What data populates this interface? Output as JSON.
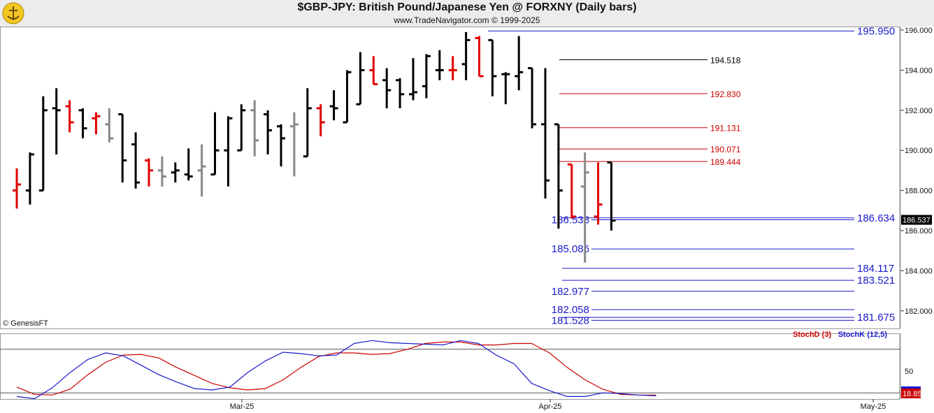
{
  "header": {
    "title": "$GBP-JPY:  British Pound/Japanese Yen @ FORXNY  (Daily bars)",
    "subtitle": "www.TradeNavigator.com © 1999-2025"
  },
  "copyright": "© GenesisFT",
  "colors": {
    "up": "#000000",
    "down": "#e00000",
    "neutral": "#888888",
    "blue": "#1a1acc",
    "red": "#cc0000"
  },
  "chart_data": [
    {
      "type": "ohlc",
      "ylim": [
        181.2,
        196.2
      ],
      "yticks": [
        "196.000",
        "194.000",
        "192.000",
        "190.000",
        "188.000",
        "186.000",
        "184.000",
        "182.000"
      ],
      "xticks": [
        "Mar-25",
        "Apr-25",
        "May-25"
      ],
      "last_price": "186.537",
      "bars": [
        {
          "o": 188.0,
          "h": 189.1,
          "l": 187.1,
          "c": 188.3,
          "col": "down"
        },
        {
          "o": 188.0,
          "h": 189.9,
          "l": 187.3,
          "c": 189.8,
          "col": "up"
        },
        {
          "o": 188.0,
          "h": 192.7,
          "l": 188.0,
          "c": 192.0,
          "col": "up"
        },
        {
          "o": 192.1,
          "h": 193.1,
          "l": 189.8,
          "c": 192.0,
          "col": "up"
        },
        {
          "o": 192.2,
          "h": 192.5,
          "l": 190.9,
          "c": 191.4,
          "col": "down"
        },
        {
          "o": 192.0,
          "h": 192.1,
          "l": 190.6,
          "c": 191.1,
          "col": "up"
        },
        {
          "o": 191.6,
          "h": 191.9,
          "l": 190.8,
          "c": 191.7,
          "col": "down"
        },
        {
          "o": 191.3,
          "h": 192.1,
          "l": 190.4,
          "c": 190.6,
          "col": "neutral"
        },
        {
          "o": 191.8,
          "h": 191.8,
          "l": 188.4,
          "c": 189.5,
          "col": "up"
        },
        {
          "o": 190.3,
          "h": 190.9,
          "l": 188.1,
          "c": 188.4,
          "col": "up"
        },
        {
          "o": 189.5,
          "h": 189.6,
          "l": 188.2,
          "c": 189.0,
          "col": "down"
        },
        {
          "o": 189.0,
          "h": 189.7,
          "l": 188.2,
          "c": 188.7,
          "col": "neutral"
        },
        {
          "o": 188.9,
          "h": 189.4,
          "l": 188.4,
          "c": 189.0,
          "col": "up"
        },
        {
          "o": 188.8,
          "h": 190.1,
          "l": 188.5,
          "c": 188.7,
          "col": "up"
        },
        {
          "o": 189.0,
          "h": 190.3,
          "l": 187.7,
          "c": 189.2,
          "col": "neutral"
        },
        {
          "o": 188.8,
          "h": 191.9,
          "l": 188.8,
          "c": 190.0,
          "col": "up"
        },
        {
          "o": 190.0,
          "h": 191.7,
          "l": 188.2,
          "c": 191.6,
          "col": "up"
        },
        {
          "o": 190.0,
          "h": 192.3,
          "l": 190.0,
          "c": 192.0,
          "col": "up"
        },
        {
          "o": 192.0,
          "h": 192.5,
          "l": 189.7,
          "c": 190.5,
          "col": "neutral"
        },
        {
          "o": 191.8,
          "h": 192.0,
          "l": 189.8,
          "c": 191.0,
          "col": "up"
        },
        {
          "o": 191.2,
          "h": 191.3,
          "l": 189.2,
          "c": 190.6,
          "col": "up"
        },
        {
          "o": 191.2,
          "h": 191.9,
          "l": 188.7,
          "c": 191.3,
          "col": "neutral"
        },
        {
          "o": 189.7,
          "h": 193.1,
          "l": 189.7,
          "c": 192.1,
          "col": "up"
        },
        {
          "o": 192.1,
          "h": 192.3,
          "l": 190.7,
          "c": 191.4,
          "col": "down"
        },
        {
          "o": 192.2,
          "h": 193.0,
          "l": 191.5,
          "c": 192.1,
          "col": "up"
        },
        {
          "o": 191.4,
          "h": 194.0,
          "l": 191.4,
          "c": 193.9,
          "col": "up"
        },
        {
          "o": 192.3,
          "h": 194.9,
          "l": 192.3,
          "c": 194.0,
          "col": "up"
        },
        {
          "o": 194.0,
          "h": 194.7,
          "l": 193.3,
          "c": 193.3,
          "col": "down"
        },
        {
          "o": 193.5,
          "h": 194.1,
          "l": 192.1,
          "c": 193.0,
          "col": "up"
        },
        {
          "o": 193.5,
          "h": 193.6,
          "l": 192.1,
          "c": 192.8,
          "col": "up"
        },
        {
          "o": 192.8,
          "h": 194.6,
          "l": 192.5,
          "c": 192.9,
          "col": "up"
        },
        {
          "o": 193.2,
          "h": 194.8,
          "l": 192.6,
          "c": 194.7,
          "col": "up"
        },
        {
          "o": 194.0,
          "h": 195.0,
          "l": 193.5,
          "c": 194.0,
          "col": "up"
        },
        {
          "o": 194.0,
          "h": 194.7,
          "l": 193.5,
          "c": 194.0,
          "col": "down"
        },
        {
          "o": 194.3,
          "h": 195.9,
          "l": 193.5,
          "c": 195.5,
          "col": "up"
        },
        {
          "o": 195.6,
          "h": 195.7,
          "l": 193.7,
          "c": 193.7,
          "col": "down"
        },
        {
          "o": 195.5,
          "h": 195.5,
          "l": 192.7,
          "c": 193.7,
          "col": "up"
        },
        {
          "o": 193.8,
          "h": 193.9,
          "l": 192.3,
          "c": 193.8,
          "col": "up"
        },
        {
          "o": 193.7,
          "h": 195.7,
          "l": 193.0,
          "c": 193.9,
          "col": "up"
        },
        {
          "o": 194.1,
          "h": 194.1,
          "l": 191.1,
          "c": 191.3,
          "col": "up"
        },
        {
          "o": 191.3,
          "h": 194.1,
          "l": 187.6,
          "c": 188.5,
          "col": "up"
        },
        {
          "o": 191.3,
          "h": 191.3,
          "l": 186.1,
          "c": 188.0,
          "col": "up"
        },
        {
          "o": 189.3,
          "h": 189.3,
          "l": 186.6,
          "c": 186.7,
          "col": "down"
        },
        {
          "o": 188.2,
          "h": 189.9,
          "l": 184.4,
          "c": 188.9,
          "col": "neutral"
        },
        {
          "o": 186.7,
          "h": 189.4,
          "l": 186.3,
          "c": 187.3,
          "col": "down"
        },
        {
          "o": 189.4,
          "h": 189.4,
          "l": 186.0,
          "c": 186.5,
          "col": "up"
        }
      ],
      "levels": [
        {
          "label": "195.950",
          "value": 195.95,
          "color": "blue",
          "side": "right"
        },
        {
          "label": "194.518",
          "value": 194.518,
          "color": "black",
          "side": "mid"
        },
        {
          "label": "192.830",
          "value": 192.83,
          "color": "red",
          "side": "mid"
        },
        {
          "label": "191.131",
          "value": 191.131,
          "color": "red",
          "side": "mid"
        },
        {
          "label": "190.071",
          "value": 190.071,
          "color": "red",
          "side": "mid"
        },
        {
          "label": "189.444",
          "value": 189.444,
          "color": "red",
          "side": "mid"
        },
        {
          "label": "186.634",
          "value": 186.634,
          "color": "blue",
          "side": "right"
        },
        {
          "label": "186.538",
          "value": 186.538,
          "color": "blue",
          "side": "left"
        },
        {
          "label": "185.086",
          "value": 185.086,
          "color": "blue",
          "side": "left"
        },
        {
          "label": "184.117",
          "value": 184.117,
          "color": "blue",
          "side": "right"
        },
        {
          "label": "183.521",
          "value": 183.521,
          "color": "blue",
          "side": "right"
        },
        {
          "label": "182.977",
          "value": 182.977,
          "color": "blue",
          "side": "left"
        },
        {
          "label": "182.058",
          "value": 182.058,
          "color": "blue",
          "side": "left"
        },
        {
          "label": "181.675",
          "value": 181.675,
          "color": "blue",
          "side": "right"
        },
        {
          "label": "181.528",
          "value": 181.528,
          "color": "blue",
          "side": "left"
        }
      ]
    },
    {
      "type": "line",
      "legend": [
        {
          "name": "StochD (3)",
          "color": "red"
        },
        {
          "name": "StochK (12,5)",
          "color": "blue"
        }
      ],
      "ylim": [
        0,
        100
      ],
      "ytick": "50",
      "current_value": "18.85",
      "series": [
        {
          "name": "StochD (3)",
          "color": "red",
          "values": [
            28,
            18,
            17,
            25,
            45,
            62,
            72,
            73,
            68,
            55,
            44,
            33,
            27,
            24,
            26,
            38,
            55,
            70,
            75,
            75,
            73,
            74,
            80,
            88,
            90,
            90,
            86,
            86,
            88,
            88,
            75,
            55,
            38,
            25,
            18,
            17,
            17
          ]
        },
        {
          "name": "StochK (12,5)",
          "color": "blue",
          "values": [
            15,
            12,
            27,
            48,
            66,
            75,
            71,
            58,
            45,
            35,
            26,
            24,
            28,
            48,
            64,
            76,
            74,
            71,
            72,
            88,
            92,
            89,
            88,
            87,
            86,
            92,
            88,
            72,
            60,
            33,
            23,
            15,
            15,
            20,
            19,
            17,
            16
          ]
        }
      ]
    }
  ]
}
